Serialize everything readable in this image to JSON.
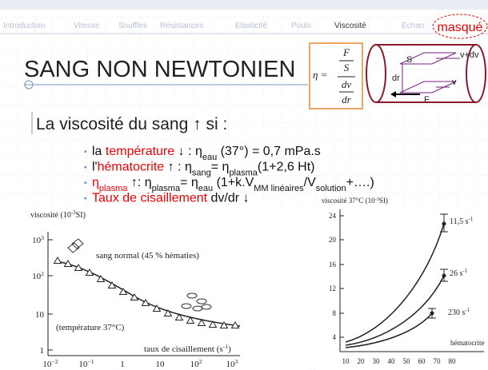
{
  "nav": [
    "Introduction",
    "Vitesse",
    "Souffles",
    "Résistances",
    "Elasticité",
    "Pouls",
    "Viscosité",
    "Echan"
  ],
  "masque": "masqué",
  "title": "SANG NON NEWTONIEN",
  "formula": {
    "eta": "η =",
    "F": "F",
    "S": "S",
    "dv": "dv",
    "dr": "dr"
  },
  "diagram": {
    "S": "S",
    "v_dv": "v+dv",
    "dr": "dr",
    "v": "v",
    "F": "F"
  },
  "subtitle": "La viscosité du sang ↑ si :",
  "bullets": [
    [
      "la ",
      "température",
      " ↓  : η",
      "eau",
      " (37°) = 0,7 mPa.s"
    ],
    [
      "l'",
      "hématocrite",
      " ↑     : η",
      "sang",
      "= η",
      "plasma",
      "(1+2,6 Ht)"
    ],
    [
      "η",
      "plasma",
      " ↑:  η",
      "plasma",
      "= η",
      "eau",
      " (1+k.V",
      "MM linéaires",
      "/V",
      "solution",
      "+….)"
    ],
    [
      "Taux de cisaillement",
      " dv/dr ↓"
    ]
  ],
  "left_figure": {
    "y_label": [
      "viscosité (10",
      "-3",
      "SI)"
    ],
    "yticks": [
      [
        "10",
        "3"
      ],
      [
        "10",
        "2"
      ],
      [
        "10",
        ""
      ],
      [
        "1",
        ""
      ]
    ],
    "xticks": [
      [
        "10",
        "−2"
      ],
      [
        "10",
        "−1"
      ],
      [
        "1",
        ""
      ],
      [
        "10",
        ""
      ],
      [
        "10",
        "2"
      ],
      [
        "10",
        "3"
      ]
    ],
    "x_label": [
      "taux de cisaillement (s",
      "-1",
      ")"
    ],
    "note_blood": "sang normal (45 % hématies)",
    "note_temp": "(température 37°C)"
  },
  "right_figure": {
    "y_label": [
      "viscosité 37°C (10",
      "-3",
      "SI)"
    ],
    "yticks": [
      "24",
      "20",
      "16",
      "12",
      "8",
      "4"
    ],
    "xticks": [
      "10",
      "20",
      "30",
      "40",
      "50",
      "60",
      "70",
      "80"
    ],
    "x_label": "hématocrite",
    "curves": [
      [
        "11,5 s",
        "-1"
      ],
      [
        "26 s",
        "-1"
      ],
      [
        "230 s",
        "-1"
      ]
    ]
  }
}
